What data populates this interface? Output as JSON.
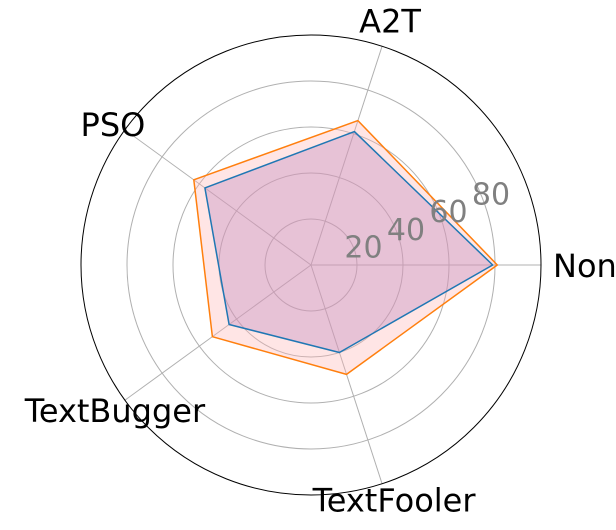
{
  "chart_data": {
    "type": "radar",
    "categories": [
      "None",
      "A2T",
      "PSO",
      "TextBugger",
      "TextFooler"
    ],
    "series": [
      {
        "values": [
          79,
          61,
          57,
          44,
          40
        ],
        "color": "#1f77b4",
        "fill": "#9467bd"
      },
      {
        "values": [
          81,
          66,
          63,
          53,
          50
        ],
        "color": "#ff7f0e",
        "fill": "#ffb4b4"
      }
    ],
    "rlim": [
      0,
      100
    ],
    "r_ticks": [
      20,
      40,
      60,
      80
    ],
    "r_tick_labels": [
      "20",
      "40",
      "60",
      "80"
    ],
    "grid": true
  }
}
